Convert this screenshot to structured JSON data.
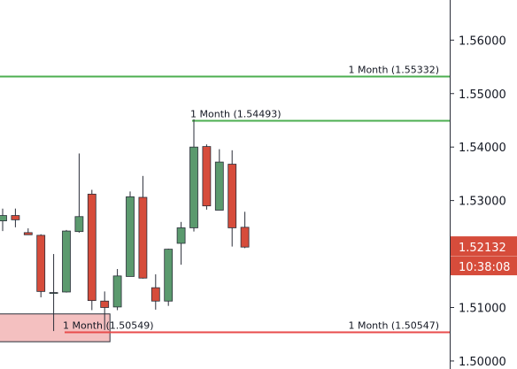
{
  "chart_data": {
    "type": "candlestick",
    "colors": {
      "up": "#5b9a6e",
      "down": "#d64c3b",
      "level_up": "#4caf50",
      "level_down": "#e84b4b",
      "zone_fill": "#f4c0c0",
      "zone_stroke": "#2a2e39",
      "badge": "#d64c3b"
    },
    "ylim": [
      1.4985,
      1.5675
    ],
    "y_ticks": [
      "1.56000",
      "1.55000",
      "1.54000",
      "1.53000",
      "1.51000",
      "1.50000"
    ],
    "y_tick_values": [
      1.56,
      1.55,
      1.54,
      1.53,
      1.51,
      1.5
    ],
    "candles": [
      {
        "o": 1.5262,
        "h": 1.5285,
        "l": 1.5243,
        "c": 1.5272
      },
      {
        "o": 1.5272,
        "h": 1.5285,
        "l": 1.525,
        "c": 1.5264
      },
      {
        "o": 1.524,
        "h": 1.5248,
        "l": 1.5236,
        "c": 1.5236
      },
      {
        "o": 1.5235,
        "h": 1.5237,
        "l": 1.5119,
        "c": 1.513
      },
      {
        "o": 1.5127,
        "h": 1.52,
        "l": 1.5056,
        "c": 1.5128
      },
      {
        "o": 1.5129,
        "h": 1.5245,
        "l": 1.5128,
        "c": 1.5243
      },
      {
        "o": 1.5242,
        "h": 1.5388,
        "l": 1.524,
        "c": 1.527
      },
      {
        "o": 1.5312,
        "h": 1.532,
        "l": 1.5095,
        "c": 1.5113
      },
      {
        "o": 1.5112,
        "h": 1.513,
        "l": 1.5058,
        "c": 1.51
      },
      {
        "o": 1.5101,
        "h": 1.5172,
        "l": 1.5095,
        "c": 1.5159
      },
      {
        "o": 1.5158,
        "h": 1.5317,
        "l": 1.5158,
        "c": 1.5307
      },
      {
        "o": 1.5306,
        "h": 1.5346,
        "l": 1.5154,
        "c": 1.5155
      },
      {
        "o": 1.5137,
        "h": 1.5162,
        "l": 1.5096,
        "c": 1.5112
      },
      {
        "o": 1.5112,
        "h": 1.521,
        "l": 1.5103,
        "c": 1.5209
      },
      {
        "o": 1.522,
        "h": 1.526,
        "l": 1.518,
        "c": 1.5249
      },
      {
        "o": 1.5249,
        "h": 1.5452,
        "l": 1.5242,
        "c": 1.54
      },
      {
        "o": 1.5401,
        "h": 1.5405,
        "l": 1.5283,
        "c": 1.529
      },
      {
        "o": 1.5282,
        "h": 1.5396,
        "l": 1.5282,
        "c": 1.5372
      },
      {
        "o": 1.5368,
        "h": 1.5394,
        "l": 1.5214,
        "c": 1.5249
      },
      {
        "o": 1.525,
        "h": 1.5279,
        "l": 1.5211,
        "c": 1.5213
      }
    ],
    "levels": [
      {
        "price": 1.55332,
        "label": "1 Month (1.55332)",
        "kind": "up",
        "from_candle": null
      },
      {
        "price": 1.54493,
        "label": "1 Month (1.54493)",
        "kind": "up",
        "from_candle": 15
      },
      {
        "price": 1.50549,
        "label": "1 Month (1.50549)",
        "kind": "down",
        "from_candle": 5
      },
      {
        "price": 1.50547,
        "label": "1 Month (1.50547)",
        "kind": "down",
        "from_candle": null
      }
    ],
    "zone": {
      "top": 1.5088,
      "bottom": 1.5036,
      "to_candle": 8
    },
    "last_price": {
      "value": "1.52132",
      "price": 1.52132
    },
    "countdown": "10:38:08"
  }
}
